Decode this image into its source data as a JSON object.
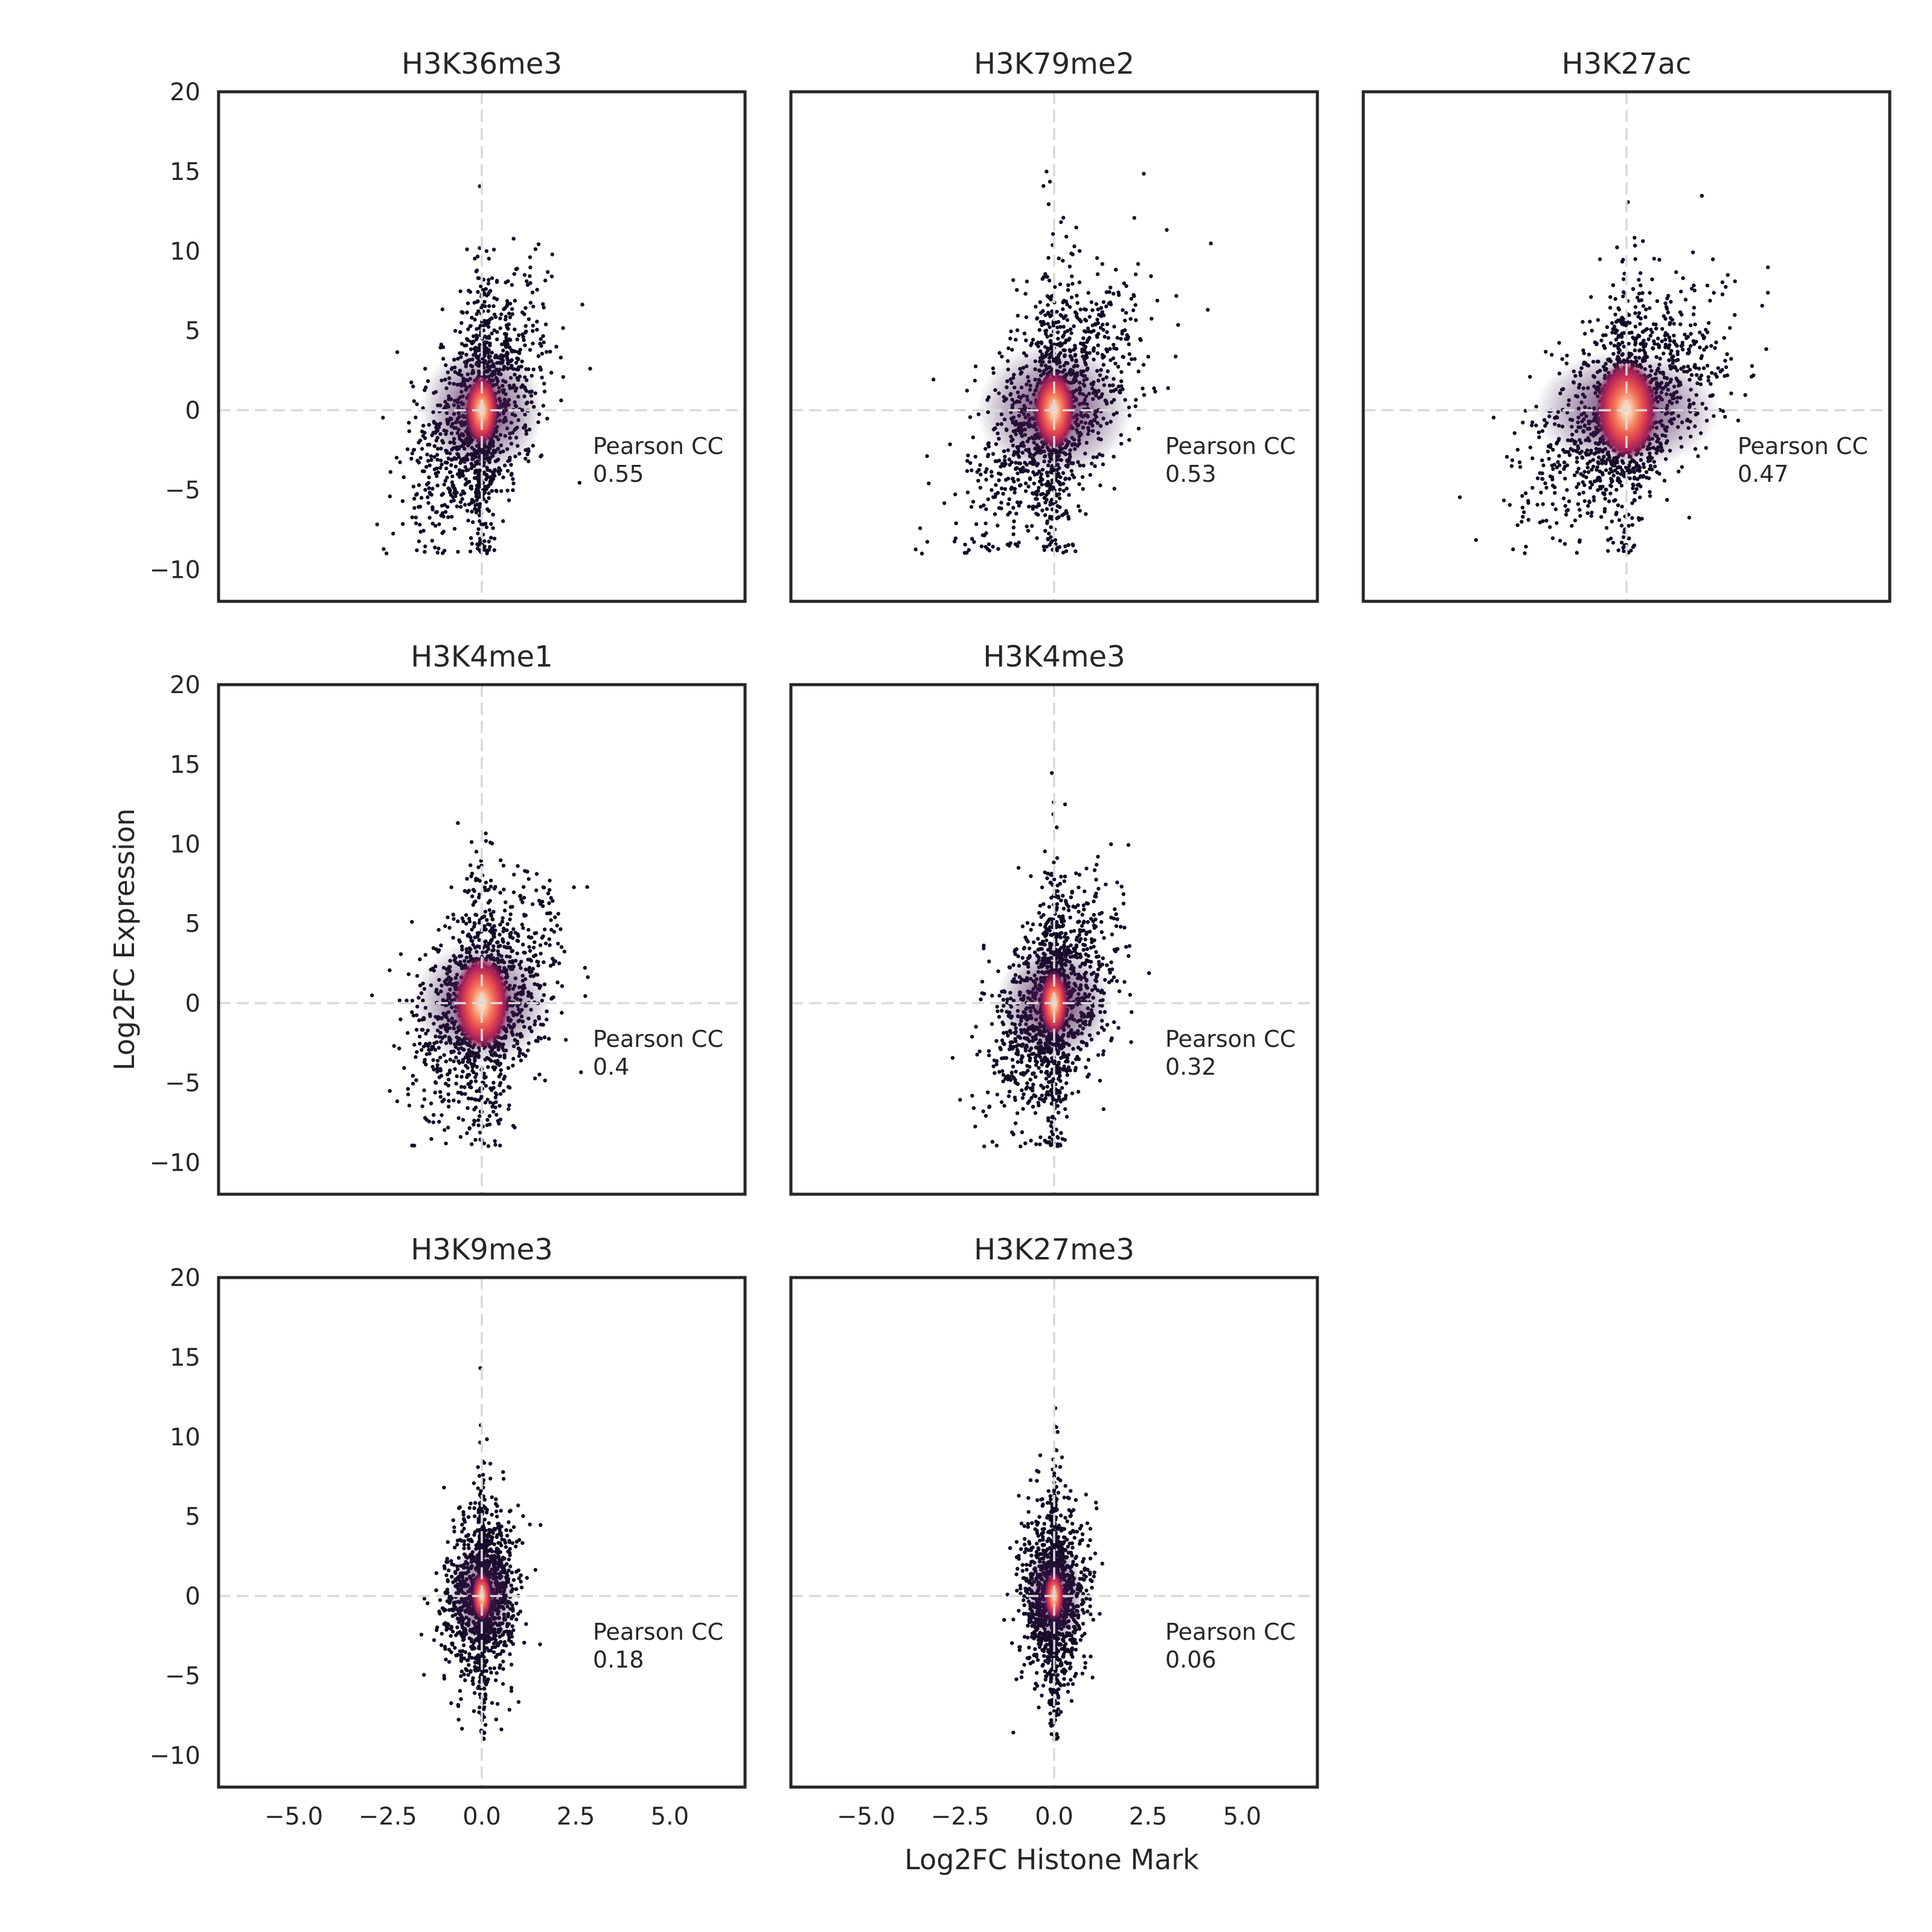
{
  "chart_data": {
    "type": "scatter",
    "description_free": true,
    "xlabel": "Log2FC Histone Mark",
    "ylabel": "Log2FC Expression",
    "xlim": [
      -7,
      7
    ],
    "ylim": [
      -12,
      20
    ],
    "xticks": [
      -5.0,
      -2.5,
      0.0,
      2.5,
      5.0
    ],
    "xtick_labels": [
      "−5.0",
      "−2.5",
      "0.0",
      "2.5",
      "5.0"
    ],
    "yticks": [
      -10,
      -5,
      0,
      5,
      10,
      15,
      20
    ],
    "ytick_labels": [
      "−10",
      "−5",
      "0",
      "5",
      "10",
      "15",
      "20"
    ],
    "reference_lines": {
      "x": 0,
      "y": 0,
      "style": "dashed",
      "color": "#d9d9d9"
    },
    "annotation_label": "Pearson CC",
    "colormap": [
      "#0d0820",
      "#2a1245",
      "#5c1a5c",
      "#a3215b",
      "#e0414e",
      "#f57b5c",
      "#fbc3a0",
      "#fdf0e8"
    ],
    "panels": [
      {
        "title": "H3K36me3",
        "pearson_cc": "0.55",
        "spread_x": 1.6,
        "spread_y": 6.0,
        "slope": 2.2,
        "core_width": 0.12
      },
      {
        "title": "H3K79me2",
        "pearson_cc": "0.53",
        "spread_x": 2.0,
        "spread_y": 6.2,
        "slope": 2.0,
        "core_width": 0.15
      },
      {
        "title": "H3K27ac",
        "pearson_cc": "0.47",
        "spread_x": 2.4,
        "spread_y": 5.5,
        "slope": 1.4,
        "core_width": 0.22
      },
      {
        "title": "H3K4me1",
        "pearson_cc": "0.4",
        "spread_x": 1.8,
        "spread_y": 5.8,
        "slope": 1.2,
        "core_width": 0.2
      },
      {
        "title": "H3K4me3",
        "pearson_cc": "0.32",
        "spread_x": 1.5,
        "spread_y": 5.5,
        "slope": 1.8,
        "core_width": 0.1
      },
      {
        "title": "H3K9me3",
        "pearson_cc": "0.18",
        "spread_x": 0.9,
        "spread_y": 5.0,
        "slope": 0.8,
        "core_width": 0.04
      },
      {
        "title": "H3K27me3",
        "pearson_cc": "0.06",
        "spread_x": 0.8,
        "spread_y": 5.0,
        "slope": 0.2,
        "core_width": 0.04
      }
    ]
  }
}
